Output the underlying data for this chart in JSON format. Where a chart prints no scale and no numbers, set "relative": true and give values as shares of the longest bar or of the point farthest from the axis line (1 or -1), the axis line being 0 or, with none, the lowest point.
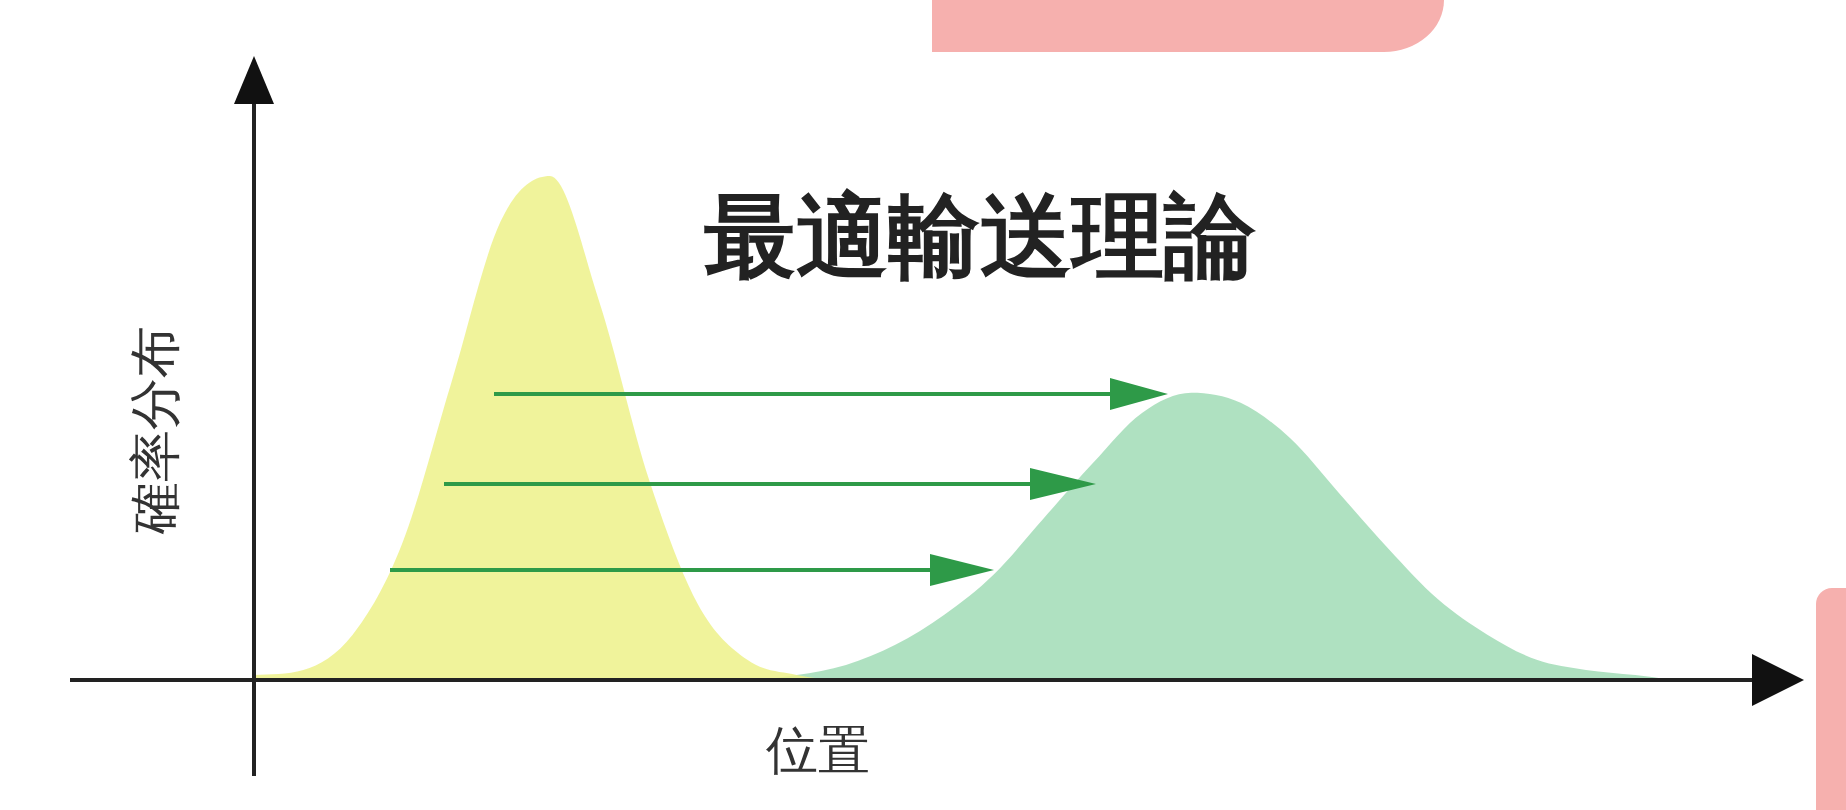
{
  "chart_data": {
    "type": "area",
    "relative": true,
    "title": "最適輸送理論",
    "xlabel": "位置",
    "ylabel": "確率分布",
    "categories": [
      null,
      null,
      null,
      null,
      null,
      null,
      null,
      null,
      null,
      null,
      null,
      null,
      null,
      null,
      null,
      null,
      null,
      null,
      null,
      null,
      null,
      null,
      null,
      null,
      null,
      null,
      null,
      null,
      null,
      null,
      null
    ],
    "series": [
      {
        "color": "#eef18c",
        "values": [
          0.01,
          0.02,
          0.09,
          0.27,
          0.59,
          0.91,
          1,
          0.75,
          0.4,
          0.15,
          0.04,
          0.01,
          0,
          0,
          0,
          0,
          0,
          0,
          0,
          0,
          0,
          0,
          0,
          0,
          0,
          0,
          0,
          0,
          0,
          0,
          0
        ]
      },
      {
        "color": "#a3dcb8",
        "values": [
          0,
          0,
          0,
          0,
          0,
          0,
          0,
          0,
          0,
          0,
          0,
          0.01,
          0.03,
          0.07,
          0.13,
          0.21,
          0.32,
          0.43,
          0.53,
          0.57,
          0.55,
          0.48,
          0.37,
          0.26,
          0.16,
          0.09,
          0.04,
          0.02,
          0.01,
          0,
          0
        ]
      }
    ]
  }
}
